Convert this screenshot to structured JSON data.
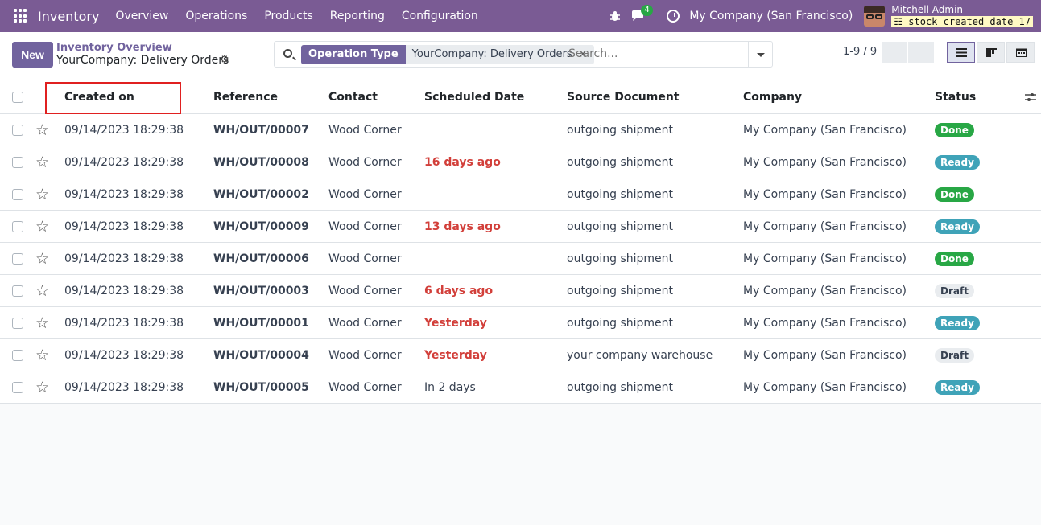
{
  "navbar": {
    "app_name": "Inventory",
    "menus": [
      "Overview",
      "Operations",
      "Products",
      "Reporting",
      "Configuration"
    ],
    "chat_count": "4",
    "company": "My Company (San Francisco)",
    "user": "Mitchell Admin",
    "db": "stock_created_date_17"
  },
  "control": {
    "new_label": "New",
    "breadcrumb_parent": "Inventory Overview",
    "breadcrumb_current": "YourCompany: Delivery Orders",
    "facet_type": "Operation Type",
    "facet_value": "YourCompany: Delivery Orders",
    "search_placeholder": "Search...",
    "pager": "1-9 / 9"
  },
  "columns": [
    "Created on",
    "Reference",
    "Contact",
    "Scheduled Date",
    "Source Document",
    "Company",
    "Status"
  ],
  "rows": [
    {
      "created": "09/14/2023 18:29:38",
      "ref": "WH/OUT/00007",
      "contact": "Wood Corner",
      "scheduled": "",
      "late": false,
      "source": "outgoing shipment",
      "company": "My Company (San Francisco)",
      "status": "Done",
      "status_kind": "done"
    },
    {
      "created": "09/14/2023 18:29:38",
      "ref": "WH/OUT/00008",
      "contact": "Wood Corner",
      "scheduled": "16 days ago",
      "late": true,
      "source": "outgoing shipment",
      "company": "My Company (San Francisco)",
      "status": "Ready",
      "status_kind": "ready"
    },
    {
      "created": "09/14/2023 18:29:38",
      "ref": "WH/OUT/00002",
      "contact": "Wood Corner",
      "scheduled": "",
      "late": false,
      "source": "outgoing shipment",
      "company": "My Company (San Francisco)",
      "status": "Done",
      "status_kind": "done"
    },
    {
      "created": "09/14/2023 18:29:38",
      "ref": "WH/OUT/00009",
      "contact": "Wood Corner",
      "scheduled": "13 days ago",
      "late": true,
      "source": "outgoing shipment",
      "company": "My Company (San Francisco)",
      "status": "Ready",
      "status_kind": "ready"
    },
    {
      "created": "09/14/2023 18:29:38",
      "ref": "WH/OUT/00006",
      "contact": "Wood Corner",
      "scheduled": "",
      "late": false,
      "source": "outgoing shipment",
      "company": "My Company (San Francisco)",
      "status": "Done",
      "status_kind": "done"
    },
    {
      "created": "09/14/2023 18:29:38",
      "ref": "WH/OUT/00003",
      "contact": "Wood Corner",
      "scheduled": "6 days ago",
      "late": true,
      "source": "outgoing shipment",
      "company": "My Company (San Francisco)",
      "status": "Draft",
      "status_kind": "draft"
    },
    {
      "created": "09/14/2023 18:29:38",
      "ref": "WH/OUT/00001",
      "contact": "Wood Corner",
      "scheduled": "Yesterday",
      "late": true,
      "source": "outgoing shipment",
      "company": "My Company (San Francisco)",
      "status": "Ready",
      "status_kind": "ready"
    },
    {
      "created": "09/14/2023 18:29:38",
      "ref": "WH/OUT/00004",
      "contact": "Wood Corner",
      "scheduled": "Yesterday",
      "late": true,
      "source": "your company warehouse",
      "company": "My Company (San Francisco)",
      "status": "Draft",
      "status_kind": "draft"
    },
    {
      "created": "09/14/2023 18:29:38",
      "ref": "WH/OUT/00005",
      "contact": "Wood Corner",
      "scheduled": "In 2 days",
      "late": false,
      "source": "outgoing shipment",
      "company": "My Company (San Francisco)",
      "status": "Ready",
      "status_kind": "ready"
    }
  ],
  "colors": {
    "navbar": "#7a5b94",
    "primary": "#71639e",
    "late": "#d23f3a",
    "done": "#28a745",
    "ready": "#3fa3b8",
    "highlight": "#e02020"
  }
}
